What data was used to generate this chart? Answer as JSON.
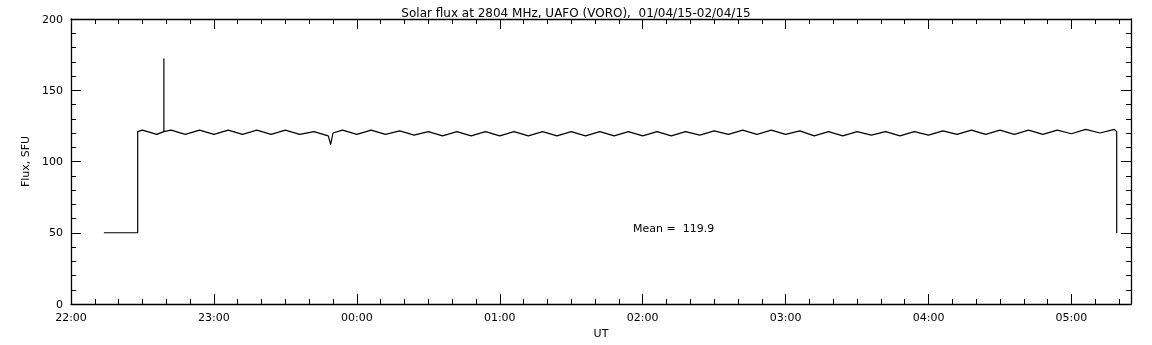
{
  "chart_data": {
    "type": "line",
    "title": "Solar flux at 2804 MHz, UAFO (VORO),  01/04/15-02/04/15",
    "xlabel": "UT",
    "ylabel": "Flux, SFU",
    "annotations": [
      "Mean =  119.9"
    ],
    "x": [
      "--04-01T22:14",
      "--04-01T22:28",
      "--04-01T22:28",
      "--04-01T22:30",
      "--04-01T22:36",
      "--04-01T22:39",
      "--04-01T22:39",
      "--04-01T22:39",
      "--04-01T22:42",
      "--04-01T22:48",
      "--04-01T22:54",
      "--04-01T23:00",
      "--04-01T23:06",
      "--04-01T23:12",
      "--04-01T23:18",
      "--04-01T23:24",
      "--04-01T23:30",
      "--04-01T23:36",
      "--04-01T23:42",
      "--04-01T23:48",
      "--04-01T23:49",
      "--04-01T23:50",
      "--04-01T23:54",
      "--04-02T00:00",
      "--04-02T00:06",
      "--04-02T00:12",
      "--04-02T00:18",
      "--04-02T00:24",
      "--04-02T00:30",
      "--04-02T00:36",
      "--04-02T00:42",
      "--04-02T00:48",
      "--04-02T00:54",
      "--04-02T01:00",
      "--04-02T01:06",
      "--04-02T01:12",
      "--04-02T01:18",
      "--04-02T01:24",
      "--04-02T01:30",
      "--04-02T01:36",
      "--04-02T01:42",
      "--04-02T01:48",
      "--04-02T01:54",
      "--04-02T02:00",
      "--04-02T02:06",
      "--04-02T02:12",
      "--04-02T02:18",
      "--04-02T02:24",
      "--04-02T02:30",
      "--04-02T02:36",
      "--04-02T02:42",
      "--04-02T02:48",
      "--04-02T02:54",
      "--04-02T03:00",
      "--04-02T03:06",
      "--04-02T03:12",
      "--04-02T03:18",
      "--04-02T03:24",
      "--04-02T03:30",
      "--04-02T03:36",
      "--04-02T03:42",
      "--04-02T03:48",
      "--04-02T03:54",
      "--04-02T04:00",
      "--04-02T04:06",
      "--04-02T04:12",
      "--04-02T04:18",
      "--04-02T04:24",
      "--04-02T04:30",
      "--04-02T04:36",
      "--04-02T04:42",
      "--04-02T04:48",
      "--04-02T04:54",
      "--04-02T05:00",
      "--04-02T05:06",
      "--04-02T05:12",
      "--04-02T05:18",
      "--04-02T05:19",
      "--04-02T05:19"
    ],
    "series": [
      {
        "color": "#000000",
        "values": [
          50,
          50,
          121,
          122,
          119,
          121,
          172,
          121,
          122,
          119,
          122,
          119,
          122,
          119,
          122,
          119,
          122,
          119,
          121,
          118,
          112,
          120,
          122,
          119,
          122,
          119,
          121.5,
          118.5,
          121,
          118,
          121,
          118,
          121,
          118,
          121,
          118,
          121,
          118,
          121,
          118,
          121,
          118,
          121,
          118,
          121,
          118,
          121,
          118.5,
          121.5,
          119,
          122,
          119,
          122,
          119,
          121.5,
          118,
          121,
          118,
          121,
          118.5,
          121,
          118,
          121,
          118.5,
          121.5,
          119,
          122,
          119,
          122,
          119,
          122,
          119,
          122,
          119.5,
          122.5,
          120,
          122.5,
          121,
          50
        ]
      }
    ],
    "xlim": [
      "--04-01T22:00",
      "--04-02T05:25"
    ],
    "xticks": [
      {
        "value": "--04-01T22:00",
        "label": "22:00"
      },
      {
        "value": "--04-01T23:00",
        "label": "23:00"
      },
      {
        "value": "--04-02T00:00",
        "label": "00:00"
      },
      {
        "value": "--04-02T01:00",
        "label": "01:00"
      },
      {
        "value": "--04-02T02:00",
        "label": "02:00"
      },
      {
        "value": "--04-02T03:00",
        "label": "03:00"
      },
      {
        "value": "--04-02T04:00",
        "label": "04:00"
      },
      {
        "value": "--04-02T05:00",
        "label": "05:00"
      }
    ],
    "ylim": [
      0,
      200
    ],
    "yticks": [
      0,
      50,
      100,
      150,
      200
    ],
    "grid": false,
    "marker": "none",
    "line_style": "solid"
  }
}
